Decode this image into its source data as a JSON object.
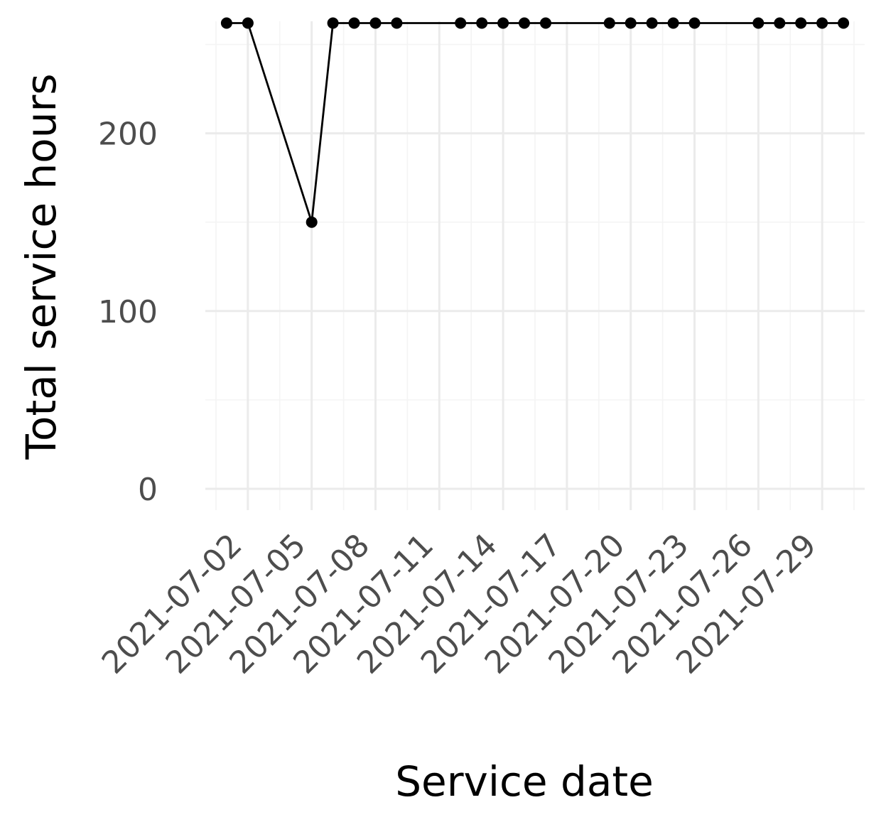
{
  "chart_data": {
    "type": "line",
    "title": "",
    "xlabel": "Service date",
    "ylabel": "Total service hours",
    "x_tick_labels": [
      "2021-07-02",
      "2021-07-05",
      "2021-07-08",
      "2021-07-11",
      "2021-07-14",
      "2021-07-17",
      "2021-07-20",
      "2021-07-23",
      "2021-07-26",
      "2021-07-29"
    ],
    "y_tick_labels": [
      "0",
      "100",
      "200"
    ],
    "y_ticks": [
      0,
      100,
      200
    ],
    "y_minor_ticks": [
      50,
      150,
      250
    ],
    "xlim": [
      "2021-06-30",
      "2021-07-31"
    ],
    "ylim": [
      -12,
      263
    ],
    "grid": true,
    "legend": "none",
    "series": [
      {
        "x": [
          "2021-07-01",
          "2021-07-02",
          "2021-07-05",
          "2021-07-06",
          "2021-07-07",
          "2021-07-08",
          "2021-07-09",
          "2021-07-12",
          "2021-07-13",
          "2021-07-14",
          "2021-07-15",
          "2021-07-16",
          "2021-07-19",
          "2021-07-20",
          "2021-07-21",
          "2021-07-22",
          "2021-07-23",
          "2021-07-26",
          "2021-07-27",
          "2021-07-28",
          "2021-07-29",
          "2021-07-30"
        ],
        "y": [
          262,
          262,
          150,
          262,
          262,
          262,
          262,
          262,
          262,
          262,
          262,
          262,
          262,
          262,
          262,
          262,
          262,
          262,
          262,
          262,
          262,
          262
        ],
        "color": "#000000"
      }
    ]
  }
}
